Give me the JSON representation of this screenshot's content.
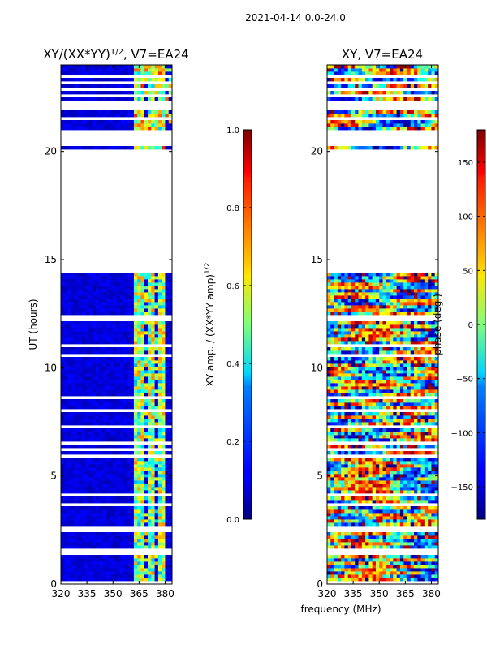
{
  "chart_data": {
    "suptitle": "2021-04-14 0.0-24.0",
    "shared_xlabel": "frequency (MHz)",
    "panels": [
      {
        "type": "heatmap",
        "title_main": "XY/(XX*YY)",
        "title_sup": "1/2",
        "title_tail": ", V7=EA24",
        "ylabel": "UT (hours)",
        "xlim": [
          320,
          384
        ],
        "ylim": [
          0,
          24
        ],
        "xticks": [
          320,
          335,
          350,
          365,
          380
        ],
        "yticks": [
          0,
          5,
          10,
          15,
          20
        ],
        "colorscale": "jet",
        "value_range": [
          0.0,
          1.0
        ],
        "gaps_hours": [
          [
            0.05,
            0.12
          ],
          [
            1.35,
            1.45
          ],
          [
            1.55,
            1.62
          ],
          [
            2.45,
            2.65
          ],
          [
            3.6,
            3.68
          ],
          [
            4.1,
            4.16
          ],
          [
            5.2,
            5.28
          ],
          [
            5.85,
            5.95
          ],
          [
            6.15,
            6.25
          ],
          [
            6.5,
            6.6
          ],
          [
            6.85,
            6.95
          ],
          [
            7.25,
            7.4
          ],
          [
            7.95,
            8.05
          ],
          [
            8.6,
            8.68
          ],
          [
            10.0,
            10.08
          ],
          [
            10.55,
            10.62
          ],
          [
            11.0,
            11.08
          ],
          [
            11.55,
            11.62
          ],
          [
            12.2,
            12.5
          ],
          [
            13.15,
            13.22
          ],
          [
            13.6,
            13.68
          ],
          [
            14.05,
            14.12
          ],
          [
            14.45,
            14.52
          ],
          [
            14.62,
            14.68
          ],
          [
            14.72,
            20.15
          ],
          [
            20.25,
            20.35
          ],
          [
            20.4,
            21.05
          ],
          [
            21.45,
            21.55
          ],
          [
            21.95,
            22.35
          ],
          [
            22.55,
            22.62
          ],
          [
            22.8,
            22.9
          ],
          [
            23.1,
            23.2
          ],
          [
            23.45,
            23.55
          ]
        ],
        "colorbar": {
          "label_main": "XY amp. / (XX*YY amp)",
          "label_sup": "1/2",
          "range": [
            0.0,
            1.0
          ],
          "ticks": [
            "0.0",
            "0.2",
            "0.4",
            "0.6",
            "0.8",
            "1.0"
          ]
        }
      },
      {
        "type": "heatmap",
        "title": "XY, V7=EA24",
        "ylabel": "",
        "xlim": [
          320,
          384
        ],
        "ylim": [
          0,
          24
        ],
        "xticks": [
          320,
          335,
          350,
          365,
          380
        ],
        "yticks": [
          0,
          5,
          10,
          15,
          20
        ],
        "colorscale": "jet",
        "value_range": [
          -180,
          180
        ],
        "gaps_hours": [
          [
            0.05,
            0.12
          ],
          [
            1.35,
            1.45
          ],
          [
            1.55,
            1.62
          ],
          [
            2.45,
            2.65
          ],
          [
            3.6,
            3.68
          ],
          [
            4.1,
            4.16
          ],
          [
            5.2,
            5.28
          ],
          [
            5.85,
            5.95
          ],
          [
            6.15,
            6.25
          ],
          [
            6.5,
            6.6
          ],
          [
            6.85,
            6.95
          ],
          [
            7.25,
            7.4
          ],
          [
            7.95,
            8.05
          ],
          [
            8.6,
            8.68
          ],
          [
            10.0,
            10.08
          ],
          [
            10.55,
            10.62
          ],
          [
            11.0,
            11.08
          ],
          [
            11.55,
            11.62
          ],
          [
            12.2,
            12.5
          ],
          [
            13.15,
            13.22
          ],
          [
            13.6,
            13.68
          ],
          [
            14.05,
            14.12
          ],
          [
            14.45,
            14.52
          ],
          [
            14.62,
            14.68
          ],
          [
            14.72,
            20.15
          ],
          [
            20.25,
            20.35
          ],
          [
            20.4,
            21.05
          ],
          [
            21.45,
            21.55
          ],
          [
            21.95,
            22.35
          ],
          [
            22.55,
            22.62
          ],
          [
            22.8,
            22.9
          ],
          [
            23.1,
            23.2
          ],
          [
            23.45,
            23.55
          ]
        ],
        "colorbar": {
          "label": "phase (deg.)",
          "range": [
            -180,
            180
          ],
          "ticks": [
            "−150",
            "−100",
            "−50",
            "0",
            "50",
            "100",
            "150"
          ],
          "tick_values": [
            -150,
            -100,
            -50,
            0,
            50,
            100,
            150
          ]
        }
      }
    ]
  }
}
